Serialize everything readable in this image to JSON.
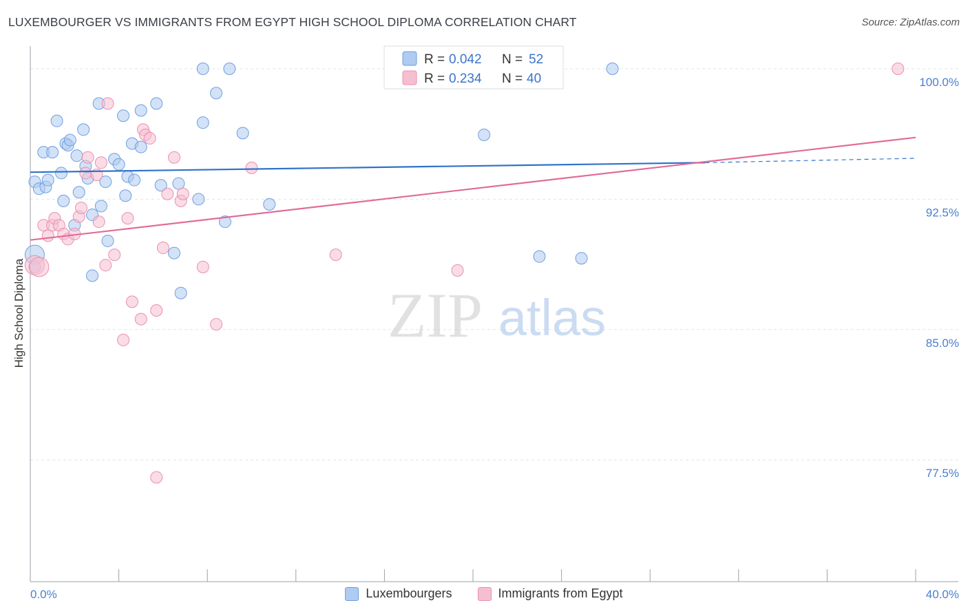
{
  "title": "LUXEMBOURGER VS IMMIGRANTS FROM EGYPT HIGH SCHOOL DIPLOMA CORRELATION CHART",
  "source": "Source: ZipAtlas.com",
  "watermark": {
    "zip": "ZIP",
    "atlas": "atlas"
  },
  "colors": {
    "blue_fill": "#aecbf1",
    "blue_stroke": "#6d9fe0",
    "blue_line": "#2f72c9",
    "pink_fill": "#f6bfd1",
    "pink_stroke": "#ea8fae",
    "pink_line": "#e26b97",
    "grid": "#dfe3e8",
    "tick_text": "#4a7fd0"
  },
  "legend": {
    "rows": [
      {
        "r_label": "R = ",
        "r_value": "0.042",
        "n_label": "N = ",
        "n_value": "52"
      },
      {
        "r_label": "R = ",
        "r_value": "0.234",
        "n_label": "N = ",
        "n_value": "40"
      }
    ]
  },
  "bottom_legend": [
    "Luxembourgers",
    "Immigrants from Egypt"
  ],
  "chart_data": {
    "type": "scatter",
    "title": "LUXEMBOURGER VS IMMIGRANTS FROM EGYPT HIGH SCHOOL DIPLOMA CORRELATION CHART",
    "xlabel": "",
    "ylabel": "High School Diploma",
    "xlim": [
      0,
      40
    ],
    "ylim": [
      70.5,
      101.5
    ],
    "x_tick_labels": [
      "0.0%",
      "40.0%"
    ],
    "y_ticks": [
      77.5,
      85.0,
      92.5,
      100.0
    ],
    "y_tick_labels": [
      "77.5%",
      "85.0%",
      "92.5%",
      "100.0%"
    ],
    "grid": true,
    "series": [
      {
        "name": "Luxembourgers",
        "r": 0.042,
        "n": 52,
        "trend": {
          "x0": 0,
          "y0": 94.05,
          "x_solid_end": 30.5,
          "y_solid_end": 94.6,
          "x1": 40,
          "y1": 94.85
        },
        "points": [
          [
            0.2,
            89.3
          ],
          [
            0.2,
            93.5
          ],
          [
            0.4,
            93.1
          ],
          [
            0.6,
            95.2
          ],
          [
            0.7,
            93.2
          ],
          [
            0.8,
            93.6
          ],
          [
            1.0,
            95.2
          ],
          [
            1.2,
            97.0
          ],
          [
            1.4,
            94.0
          ],
          [
            1.5,
            92.4
          ],
          [
            1.6,
            95.7
          ],
          [
            1.7,
            95.6
          ],
          [
            1.8,
            95.9
          ],
          [
            2.0,
            91.0
          ],
          [
            2.1,
            95.0
          ],
          [
            2.2,
            92.9
          ],
          [
            2.4,
            96.5
          ],
          [
            2.5,
            94.4
          ],
          [
            2.6,
            93.7
          ],
          [
            2.8,
            91.6
          ],
          [
            2.8,
            88.1
          ],
          [
            3.1,
            98.0
          ],
          [
            3.2,
            92.1
          ],
          [
            3.4,
            93.5
          ],
          [
            3.5,
            90.1
          ],
          [
            3.8,
            94.8
          ],
          [
            4.0,
            94.5
          ],
          [
            4.2,
            97.3
          ],
          [
            4.3,
            92.7
          ],
          [
            4.4,
            93.8
          ],
          [
            4.6,
            95.7
          ],
          [
            4.7,
            93.6
          ],
          [
            5.0,
            97.6
          ],
          [
            5.0,
            95.5
          ],
          [
            5.7,
            98.0
          ],
          [
            5.9,
            93.3
          ],
          [
            6.5,
            89.4
          ],
          [
            6.7,
            93.4
          ],
          [
            6.8,
            87.1
          ],
          [
            7.6,
            92.5
          ],
          [
            7.8,
            100.0
          ],
          [
            7.8,
            96.9
          ],
          [
            8.4,
            98.6
          ],
          [
            8.8,
            91.2
          ],
          [
            9.0,
            100.0
          ],
          [
            9.6,
            96.3
          ],
          [
            10.8,
            92.2
          ],
          [
            20.5,
            96.2
          ],
          [
            23.0,
            89.2
          ],
          [
            24.9,
            89.1
          ],
          [
            26.3,
            100.0
          ],
          [
            0.2,
            88.6
          ]
        ]
      },
      {
        "name": "Immigrants from Egypt",
        "r": 0.234,
        "n": 40,
        "trend": {
          "x0": 0,
          "y0": 90.15,
          "x1": 40,
          "y1": 96.05
        },
        "points": [
          [
            0.2,
            88.7
          ],
          [
            0.4,
            88.6
          ],
          [
            0.6,
            91.0
          ],
          [
            0.8,
            90.4
          ],
          [
            1.0,
            91.0
          ],
          [
            1.1,
            91.4
          ],
          [
            1.3,
            91.0
          ],
          [
            1.5,
            90.5
          ],
          [
            1.7,
            90.2
          ],
          [
            2.0,
            90.5
          ],
          [
            2.2,
            91.5
          ],
          [
            2.3,
            92.0
          ],
          [
            2.5,
            94.0
          ],
          [
            2.6,
            94.9
          ],
          [
            3.0,
            93.9
          ],
          [
            3.1,
            91.2
          ],
          [
            3.2,
            94.6
          ],
          [
            3.4,
            88.7
          ],
          [
            3.5,
            98.0
          ],
          [
            3.8,
            89.3
          ],
          [
            4.2,
            84.4
          ],
          [
            4.4,
            91.4
          ],
          [
            4.6,
            86.6
          ],
          [
            5.0,
            85.6
          ],
          [
            5.1,
            96.5
          ],
          [
            5.2,
            96.2
          ],
          [
            5.4,
            96.0
          ],
          [
            5.7,
            86.1
          ],
          [
            5.7,
            76.5
          ],
          [
            6.0,
            89.7
          ],
          [
            6.2,
            92.8
          ],
          [
            6.5,
            94.9
          ],
          [
            6.8,
            92.4
          ],
          [
            6.9,
            92.8
          ],
          [
            7.8,
            88.6
          ],
          [
            8.4,
            85.3
          ],
          [
            10.0,
            94.3
          ],
          [
            13.8,
            89.3
          ],
          [
            19.3,
            88.4
          ],
          [
            39.2,
            100.0
          ]
        ]
      }
    ]
  }
}
